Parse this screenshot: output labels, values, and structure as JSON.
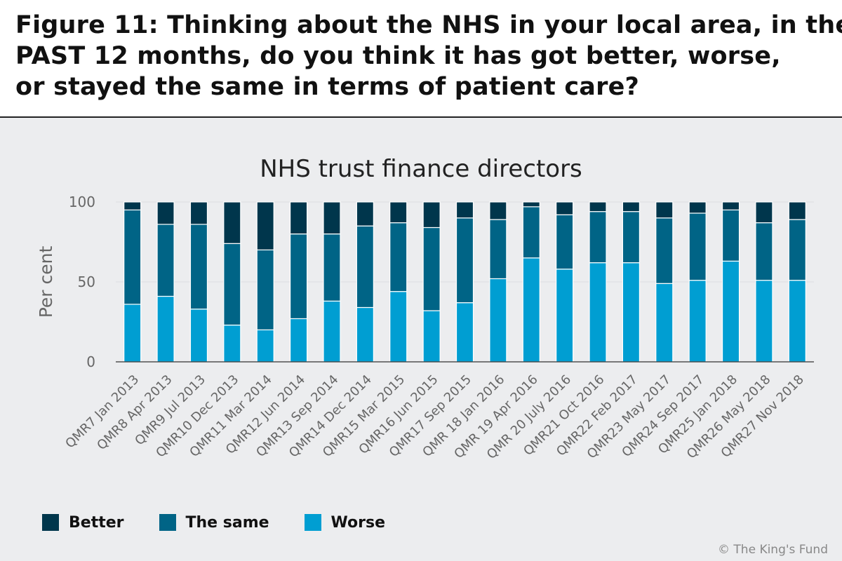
{
  "figure_title": "Figure 11: Thinking about the NHS in your local area, in the\nPAST 12 months, do you think it has got better, worse,\nor stayed the same in terms of patient care?",
  "copyright": "© The King's Fund",
  "colors": {
    "Better": "#00364c",
    "The same": "#006486",
    "Worse": "#009ed2",
    "panel_bg": "#ecedef"
  },
  "chart_data": {
    "type": "bar",
    "stacked": true,
    "title": "NHS trust finance directors",
    "xlabel": "",
    "ylabel": "Per cent",
    "ylim": [
      0,
      100
    ],
    "yticks": [
      0,
      50,
      100
    ],
    "grid": true,
    "legend_position": "bottom",
    "categories": [
      "QMR7 Jan 2013",
      "QMR8 Apr 2013",
      "QMR9 Jul 2013",
      "QMR10 Dec 2013",
      "QMR11 Mar 2014",
      "QMR12 Jun 2014",
      "QMR13 Sep 2014",
      "QMR14 Dec 2014",
      "QMR15 Mar 2015",
      "QMR16 Jun 2015",
      "QMR17 Sep 2015",
      "QMR 18 Jan 2016",
      "QMR 19 Apr 2016",
      "QMR 20 July 2016",
      "QMR21 Oct 2016",
      "QMR22 Feb 2017",
      "QMR23 May 2017",
      "QMR24 Sep 2017",
      "QMR25 Jan 2018",
      "QMR26 May 2018",
      "QMR27 Nov 2018"
    ],
    "series": [
      {
        "name": "Worse",
        "values": [
          36,
          41,
          33,
          23,
          20,
          27,
          38,
          34,
          44,
          32,
          37,
          52,
          65,
          58,
          62,
          62,
          49,
          51,
          63,
          51,
          51
        ]
      },
      {
        "name": "The same",
        "values": [
          59,
          45,
          53,
          51,
          50,
          53,
          42,
          51,
          43,
          52,
          53,
          37,
          32,
          34,
          32,
          32,
          41,
          42,
          32,
          36,
          38
        ]
      },
      {
        "name": "Better",
        "values": [
          5,
          14,
          14,
          26,
          30,
          20,
          20,
          15,
          13,
          16,
          10,
          11,
          3,
          8,
          6,
          6,
          10,
          7,
          5,
          13,
          11
        ]
      }
    ]
  }
}
